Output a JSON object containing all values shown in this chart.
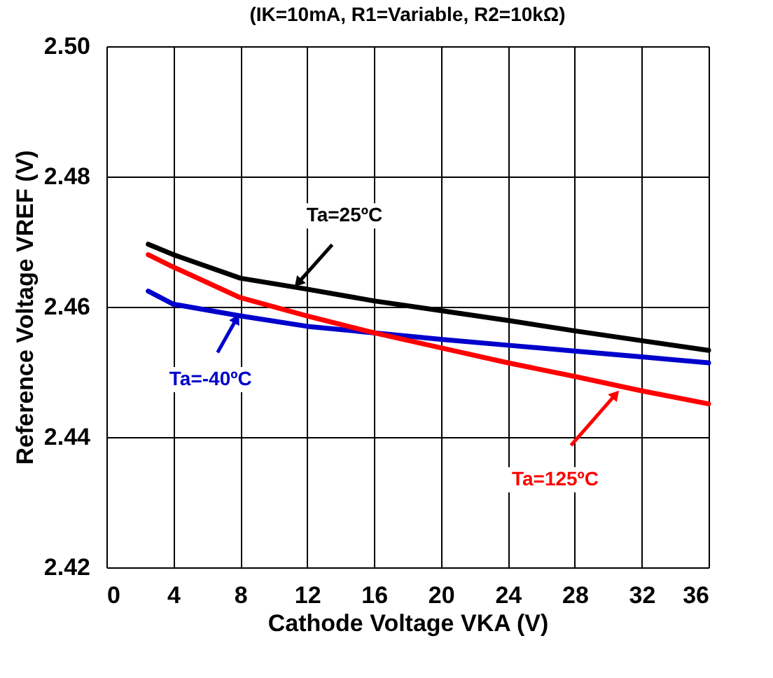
{
  "chart_data": {
    "type": "line",
    "subtitle": "(IK=10mA, R1=Variable, R2=10kΩ)",
    "xlabel": "Cathode Voltage VKA (V)",
    "ylabel": "Reference Voltage VREF (V)",
    "xlim": [
      0,
      36
    ],
    "xticks": [
      0,
      4,
      8,
      12,
      16,
      20,
      24,
      28,
      32,
      36
    ],
    "ylim": [
      2.42,
      2.5
    ],
    "yticks": [
      {
        "value": 2.42,
        "label": "2.42"
      },
      {
        "value": 2.44,
        "label": "2.44"
      },
      {
        "value": 2.46,
        "label": "2.46"
      },
      {
        "value": 2.48,
        "label": "2.48"
      },
      {
        "value": 2.5,
        "label": "2.50"
      }
    ],
    "grid": true,
    "legend": false,
    "marker": "none",
    "line_style": "solid",
    "x": [
      2.5,
      4,
      8,
      12,
      16,
      20,
      24,
      28,
      32,
      36
    ],
    "series": [
      {
        "color": "#000000",
        "values": [
          2.4696,
          2.468,
          2.4644,
          2.4627,
          2.4609,
          2.4594,
          2.4579,
          2.4563,
          2.4548,
          2.4533
        ]
      },
      {
        "color": "#0000cc",
        "values": [
          2.4624,
          2.4604,
          2.4586,
          2.457,
          2.456,
          2.455,
          2.4541,
          2.4532,
          2.4523,
          2.4514
        ]
      },
      {
        "color": "#ff0000",
        "values": [
          2.468,
          2.4661,
          2.4614,
          2.4586,
          2.456,
          2.4537,
          2.4514,
          2.4493,
          2.4471,
          2.4451
        ]
      }
    ],
    "annotations": [
      {
        "text": "Ta=25ºC",
        "x": 11.3,
        "y": 2.4632
      },
      {
        "text": "Ta=-40ºC",
        "x": 7.9,
        "y": 2.4587
      },
      {
        "text": "Ta=125ºC",
        "x": 30.6,
        "y": 2.447
      }
    ]
  }
}
